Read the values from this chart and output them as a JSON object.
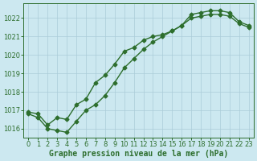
{
  "line1_x": [
    0,
    1,
    2,
    3,
    4,
    5,
    6,
    7,
    8,
    9,
    10,
    11,
    12,
    13,
    14,
    15,
    16,
    17,
    18,
    19,
    20,
    21,
    22,
    23
  ],
  "line1_y": [
    1016.9,
    1016.8,
    1016.2,
    1016.6,
    1016.5,
    1017.3,
    1017.6,
    1018.5,
    1018.9,
    1019.5,
    1020.2,
    1020.4,
    1020.8,
    1021.0,
    1021.1,
    1021.3,
    1021.6,
    1022.2,
    1022.3,
    1022.4,
    1022.4,
    1022.3,
    1021.8,
    1021.6
  ],
  "line2_x": [
    0,
    1,
    2,
    3,
    4,
    5,
    6,
    7,
    8,
    9,
    10,
    11,
    12,
    13,
    14,
    15,
    16,
    17,
    18,
    19,
    20,
    21,
    22,
    23
  ],
  "line2_y": [
    1016.8,
    1016.6,
    1016.0,
    1015.9,
    1015.8,
    1016.4,
    1017.0,
    1017.3,
    1017.8,
    1018.5,
    1019.3,
    1019.8,
    1020.3,
    1020.7,
    1021.0,
    1021.3,
    1021.6,
    1022.0,
    1022.1,
    1022.2,
    1022.2,
    1022.1,
    1021.7,
    1021.5
  ],
  "bg_color": "#cce8f0",
  "grid_color": "#aaccd8",
  "line_color": "#2d6e2d",
  "marker": "D",
  "marker_size": 2.5,
  "ylim": [
    1015.5,
    1022.8
  ],
  "xlim": [
    -0.5,
    23.5
  ],
  "yticks": [
    1016,
    1017,
    1018,
    1019,
    1020,
    1021,
    1022
  ],
  "xticks": [
    0,
    1,
    2,
    3,
    4,
    5,
    6,
    7,
    8,
    9,
    10,
    11,
    12,
    13,
    14,
    15,
    16,
    17,
    18,
    19,
    20,
    21,
    22,
    23
  ],
  "xlabel": "Graphe pression niveau de la mer (hPa)",
  "xlabel_fontsize": 7,
  "tick_fontsize": 6,
  "line_width": 1.0,
  "figwidth": 3.2,
  "figheight": 2.0,
  "dpi": 100
}
